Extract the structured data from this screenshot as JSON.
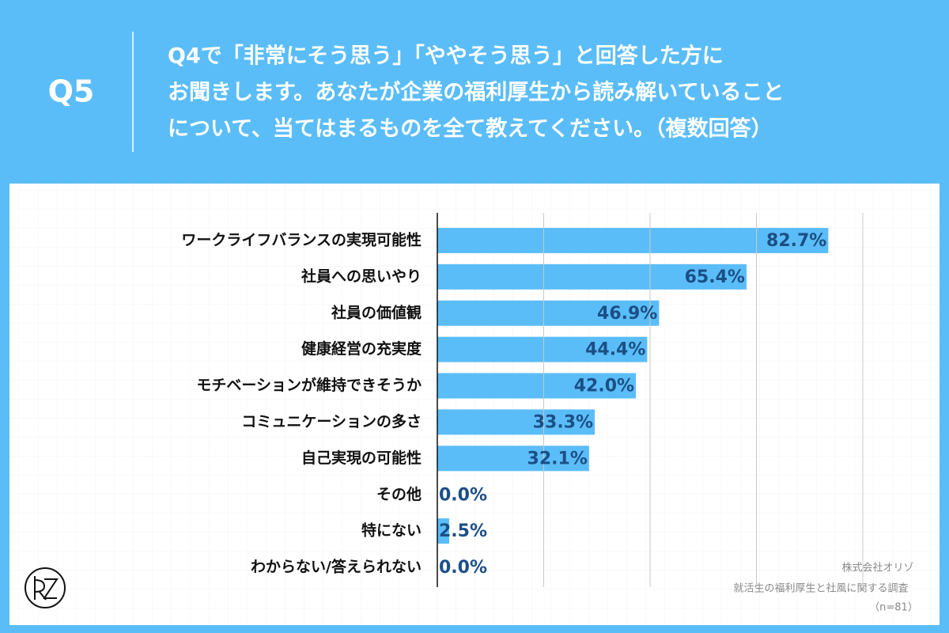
{
  "header": {
    "label": "Q5",
    "question": [
      "Q4で「非常にそう思う」「ややそう思う」と回答した方に",
      "お聞きします。あなたが企業の福利厚生から読み解いていること",
      "について、当てはまるものを全て教えてください。（複数回答）"
    ]
  },
  "chart_data": {
    "type": "bar",
    "orientation": "horizontal",
    "categories": [
      "ワークライフバランスの実現可能性",
      "社員への思いやり",
      "社員の価値観",
      "健康経営の充実度",
      "モチベーションが維持できそうか",
      "コミュニケーションの多さ",
      "自己実現の可能性",
      "その他",
      "特にない",
      "わからない/答えられない"
    ],
    "values": [
      82.7,
      65.4,
      46.9,
      44.4,
      42.0,
      33.3,
      32.1,
      0.0,
      2.5,
      0.0
    ],
    "value_labels": [
      "82.7%",
      "65.4%",
      "46.9%",
      "44.4%",
      "42.0%",
      "33.3%",
      "32.1%",
      "0.0%",
      "2.5%",
      "0.0%"
    ],
    "color": "#5bbdf7",
    "label_color": "#1b4f86",
    "xlim": [
      0,
      90
    ],
    "xticks": [
      0,
      22.5,
      45,
      67.5,
      90
    ],
    "grid": true
  },
  "source": {
    "lines": [
      "株式会社オリゾ",
      "就活生の福利厚生と社風に関する調査",
      "（n=81）"
    ]
  }
}
